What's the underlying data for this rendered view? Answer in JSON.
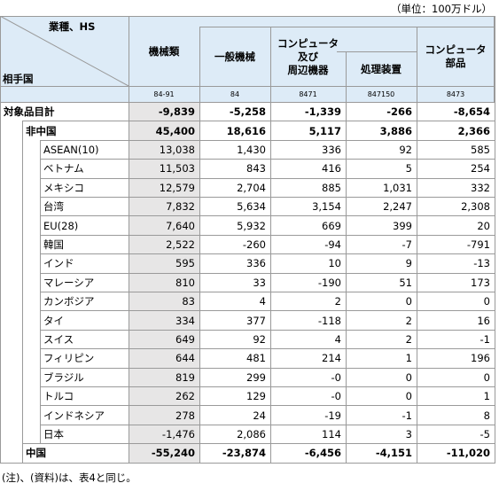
{
  "unit_note": "（単位：100万ドル）",
  "header": {
    "corner_top": "業種、HS",
    "corner_bottom": "相手国",
    "columns": [
      {
        "label": [
          "機械類"
        ],
        "hs": "84-91"
      },
      {
        "label": [
          "一般機械"
        ],
        "hs": "84"
      },
      {
        "label": [
          "コンピュータ",
          "及び",
          "周辺機器"
        ],
        "hs": "8471"
      },
      {
        "label": [
          "処理装置"
        ],
        "hs": "847150"
      },
      {
        "label": [
          "コンピュータ",
          "部品"
        ],
        "hs": "8473"
      }
    ]
  },
  "rows": [
    {
      "label": "対象品目計",
      "level": 0,
      "values": [
        "-9,839",
        "-5,258",
        "-1,339",
        "-266",
        "-8,654"
      ]
    },
    {
      "label": "非中国",
      "level": 1,
      "values": [
        "45,400",
        "18,616",
        "5,117",
        "3,886",
        "2,366"
      ]
    },
    {
      "label": "ASEAN(10)",
      "level": 2,
      "values": [
        "13,038",
        "1,430",
        "336",
        "92",
        "585"
      ]
    },
    {
      "label": "ベトナム",
      "level": 2,
      "values": [
        "11,503",
        "843",
        "416",
        "5",
        "254"
      ]
    },
    {
      "label": "メキシコ",
      "level": 2,
      "values": [
        "12,579",
        "2,704",
        "885",
        "1,031",
        "332"
      ]
    },
    {
      "label": "台湾",
      "level": 2,
      "values": [
        "7,832",
        "5,634",
        "3,154",
        "2,247",
        "2,308"
      ]
    },
    {
      "label": "EU(28)",
      "level": 2,
      "values": [
        "7,640",
        "5,932",
        "669",
        "399",
        "20"
      ]
    },
    {
      "label": "韓国",
      "level": 2,
      "values": [
        "2,522",
        "-260",
        "-94",
        "-7",
        "-791"
      ]
    },
    {
      "label": "インド",
      "level": 2,
      "values": [
        "595",
        "336",
        "10",
        "9",
        "-13"
      ]
    },
    {
      "label": "マレーシア",
      "level": 2,
      "values": [
        "810",
        "33",
        "-190",
        "51",
        "173"
      ]
    },
    {
      "label": "カンボジア",
      "level": 2,
      "values": [
        "83",
        "4",
        "2",
        "0",
        "0"
      ]
    },
    {
      "label": "タイ",
      "level": 2,
      "values": [
        "334",
        "377",
        "-118",
        "2",
        "16"
      ]
    },
    {
      "label": "スイス",
      "level": 2,
      "values": [
        "649",
        "92",
        "4",
        "2",
        "-1"
      ]
    },
    {
      "label": "フィリピン",
      "level": 2,
      "values": [
        "644",
        "481",
        "214",
        "1",
        "196"
      ]
    },
    {
      "label": "ブラジル",
      "level": 2,
      "values": [
        "819",
        "299",
        "-0",
        "0",
        "0"
      ]
    },
    {
      "label": "トルコ",
      "level": 2,
      "values": [
        "262",
        "129",
        "-0",
        "0",
        "1"
      ]
    },
    {
      "label": "インドネシア",
      "level": 2,
      "values": [
        "278",
        "24",
        "-19",
        "-1",
        "8"
      ]
    },
    {
      "label": "日本",
      "level": 2,
      "values": [
        "-1,476",
        "2,086",
        "114",
        "3",
        "-5"
      ]
    },
    {
      "label": "中国",
      "level": 1,
      "values": [
        "-55,240",
        "-23,874",
        "-6,456",
        "-4,151",
        "-11,020"
      ]
    }
  ],
  "note": "(注)、(資料)は、表4と同じ。"
}
